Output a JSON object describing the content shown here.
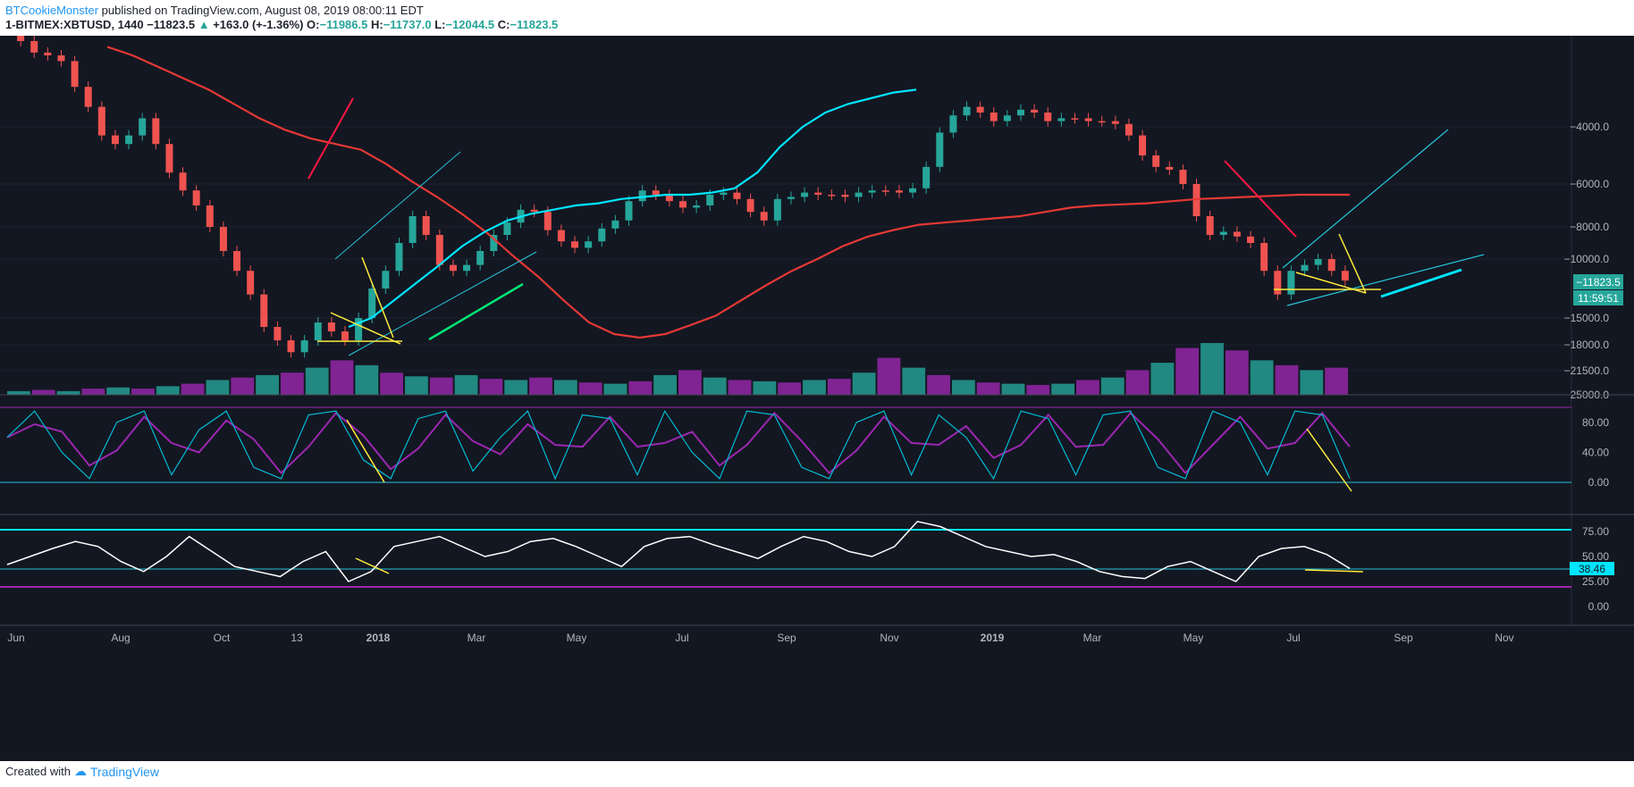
{
  "header": {
    "author": "BTCookieMonster",
    "published_text": " published on TradingView.com, August 08, 2019 08:00:11 EDT",
    "symbol": "1-BITMEX:XBTUSD, 1440",
    "last": "−11823.5",
    "change_arrow": "▲",
    "change": "+163.0 (+-1.36%)",
    "o_label": "O:",
    "o_val": "−11986.5",
    "h_label": "H:",
    "h_val": "−11737.0",
    "l_label": "L:",
    "l_val": "−12044.5",
    "c_label": "C:",
    "c_val": "−11823.5"
  },
  "footer": {
    "created_with": "Created with",
    "brand": "TradingView"
  },
  "colors": {
    "background": "#131722",
    "up": "#26a69a",
    "down": "#ef5350",
    "ma_red": "#e53935",
    "ma_cyan": "#00e5ff",
    "volume_purple": "#9c27b0",
    "stoch_k": "#00bcd4",
    "stoch_d": "#9c27b0",
    "rsi": "#ffffff",
    "annotation_yellow": "#ffeb3b",
    "annotation_green": "#00e676"
  },
  "chart_data": {
    "type": "candlestick",
    "price_axis": {
      "ticks": [
        "−4000.0",
        "−6000.0",
        "−8000.0",
        "−10000.0",
        "−15000.0",
        "−18000.0",
        "−21500.0",
        "−25000.0"
      ],
      "last_price_label": "−11823.5",
      "countdown_label": "11:59:51"
    },
    "time_axis": {
      "labels": [
        "Jun",
        "Aug",
        "Oct",
        "13",
        "2018",
        "Mar",
        "May",
        "Jul",
        "Sep",
        "Nov",
        "2019",
        "Mar",
        "May",
        "Jul",
        "Sep",
        "Nov"
      ]
    },
    "price_series": [
      -700,
      -1000,
      -1400,
      -1500,
      -1700,
      -2600,
      -3300,
      -4300,
      -4600,
      -4300,
      -3700,
      -4600,
      -5600,
      -6300,
      -7000,
      -8000,
      -9500,
      -11000,
      -13000,
      -16000,
      -17500,
      -19000,
      -17500,
      -15500,
      -16500,
      -17500,
      -15000,
      -12500,
      -11000,
      -9000,
      -7500,
      -8500,
      -10500,
      -11000,
      -10500,
      -9500,
      -8500,
      -7800,
      -7200,
      -7300,
      -8200,
      -8900,
      -9300,
      -8900,
      -8100,
      -7700,
      -6800,
      -6300,
      -6500,
      -6800,
      -7100,
      -7000,
      -6500,
      -6400,
      -6700,
      -7300,
      -7700,
      -6700,
      -6600,
      -6400,
      -6500,
      -6500,
      -6600,
      -6400,
      -6300,
      -6300,
      -6400,
      -6200,
      -5400,
      -4200,
      -3600,
      -3300,
      -3500,
      -3800,
      -3600,
      -3400,
      -3500,
      -3800,
      -3700,
      -3700,
      -3800,
      -3800,
      -3900,
      -4300,
      -5000,
      -5400,
      -5500,
      -6000,
      -7500,
      -8500,
      -8300,
      -8600,
      -9000,
      -11000,
      -13000,
      -11000,
      -10500,
      -10000,
      -11000,
      -11823
    ],
    "ma_red": [
      -1200,
      -1500,
      -1900,
      -2300,
      -2700,
      -3200,
      -3700,
      -4100,
      -4400,
      -4600,
      -4800,
      -5300,
      -5900,
      -6600,
      -7400,
      -8400,
      -9800,
      -11500,
      -13500,
      -15500,
      -16800,
      -17200,
      -16800,
      -15800,
      -14800,
      -13500,
      -12200,
      -11000,
      -10000,
      -9200,
      -8600,
      -8200,
      -7900,
      -7800,
      -7700,
      -7600,
      -7500,
      -7300,
      -7100,
      -7000,
      -6950,
      -6900,
      -6800,
      -6700,
      -6650,
      -6600,
      -6550,
      -6500,
      -6500,
      -6500
    ],
    "ma_cyan": [
      -16000,
      -15000,
      -13500,
      -12000,
      -10500,
      -9200,
      -8300,
      -7700,
      -7400,
      -7200,
      -7000,
      -6900,
      -6700,
      -6600,
      -6500,
      -6500,
      -6400,
      -6200,
      -5600,
      -4700,
      -4000,
      -3500,
      -3200,
      -3000,
      -2800,
      -2700
    ],
    "volume": [
      3,
      4,
      3,
      5,
      6,
      5,
      7,
      9,
      12,
      14,
      16,
      18,
      22,
      28,
      24,
      18,
      15,
      14,
      16,
      13,
      12,
      14,
      12,
      10,
      9,
      11,
      16,
      20,
      14,
      12,
      11,
      10,
      12,
      13,
      18,
      30,
      22,
      16,
      12,
      10,
      9,
      8,
      9,
      12,
      14,
      20,
      26,
      38,
      42,
      36,
      28,
      24,
      20,
      22
    ],
    "stoch_k": [
      60,
      95,
      40,
      5,
      80,
      95,
      10,
      70,
      95,
      20,
      5,
      90,
      95,
      30,
      5,
      85,
      95,
      15,
      60,
      95,
      5,
      90,
      85,
      10,
      95,
      40,
      5,
      95,
      90,
      20,
      5,
      80,
      95,
      10,
      90,
      60,
      5,
      95,
      85,
      10,
      90,
      95,
      20,
      5,
      95,
      80,
      10,
      95,
      90,
      5
    ],
    "stoch_axis": {
      "ticks": [
        "80.00",
        "40.00",
        "0.00"
      ]
    },
    "rsi": [
      42,
      50,
      58,
      65,
      60,
      45,
      35,
      50,
      70,
      55,
      40,
      35,
      30,
      45,
      55,
      25,
      35,
      60,
      65,
      70,
      60,
      50,
      55,
      65,
      68,
      60,
      50,
      40,
      60,
      68,
      70,
      62,
      55,
      48,
      60,
      70,
      65,
      55,
      50,
      60,
      85,
      80,
      70,
      60,
      55,
      50,
      52,
      45,
      35,
      30,
      28,
      40,
      45,
      35,
      25,
      50,
      58,
      60,
      52,
      38
    ],
    "rsi_axis": {
      "ticks": [
        "75.00",
        "50.00",
        "25.00",
        "0.00"
      ],
      "current_label": "38.46"
    }
  }
}
